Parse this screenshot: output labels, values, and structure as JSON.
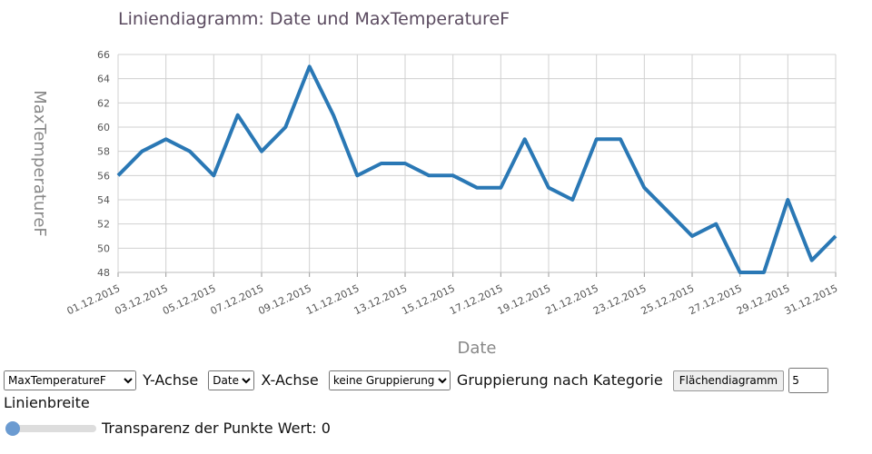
{
  "chart_data": {
    "type": "line",
    "title": "Liniendiagramm: Date und MaxTemperatureF",
    "xlabel": "Date",
    "ylabel": "MaxTemperatureF",
    "ylim": [
      48,
      66
    ],
    "y_ticks": [
      "48",
      "50",
      "52",
      "54",
      "56",
      "58",
      "60",
      "62",
      "64",
      "66"
    ],
    "x": [
      "01.12.2015",
      "02.12.2015",
      "03.12.2015",
      "04.12.2015",
      "05.12.2015",
      "06.12.2015",
      "07.12.2015",
      "08.12.2015",
      "09.12.2015",
      "10.12.2015",
      "11.12.2015",
      "12.12.2015",
      "13.12.2015",
      "14.12.2015",
      "15.12.2015",
      "16.12.2015",
      "17.12.2015",
      "18.12.2015",
      "19.12.2015",
      "20.12.2015",
      "21.12.2015",
      "22.12.2015",
      "23.12.2015",
      "24.12.2015",
      "25.12.2015",
      "26.12.2015",
      "27.12.2015",
      "28.12.2015",
      "29.12.2015",
      "30.12.2015",
      "31.12.2015"
    ],
    "x_tick_labels": [
      "01.12.2015",
      "03.12.2015",
      "05.12.2015",
      "07.12.2015",
      "09.12.2015",
      "11.12.2015",
      "13.12.2015",
      "15.12.2015",
      "17.12.2015",
      "19.12.2015",
      "21.12.2015",
      "23.12.2015",
      "25.12.2015",
      "27.12.2015",
      "29.12.2015",
      "31.12.2015"
    ],
    "series": [
      {
        "values": [
          56,
          58,
          59,
          58,
          56,
          61,
          58,
          60,
          65,
          61,
          56,
          57,
          57,
          56,
          56,
          55,
          55,
          59,
          55,
          54,
          59,
          59,
          55,
          53,
          51,
          52,
          48,
          48,
          54,
          49,
          51
        ]
      }
    ],
    "grid": true,
    "line_color": "#2a78b5"
  },
  "controls": {
    "y_select_value": "MaxTemperatureF",
    "y_label": "Y-Achse",
    "x_select_value": "Date",
    "x_label": "X-Achse",
    "group_select_value": "keine Gruppierung",
    "group_label": "Gruppierung nach Kategorie",
    "area_button": "Flächendiagramm",
    "line_width_value": "5",
    "line_width_label": "Linienbreite",
    "transparency_label": "Transparenz der Punkte Wert: 0",
    "transparency_value": 0
  }
}
